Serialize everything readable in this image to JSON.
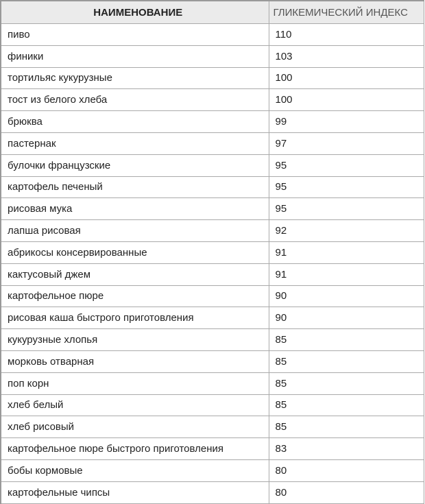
{
  "table": {
    "headers": [
      "НАИМЕНОВАНИЕ",
      "ГЛИКЕМИЧЕСКИЙ ИНДЕКС"
    ],
    "rows": [
      [
        "пиво",
        "110"
      ],
      [
        "финики",
        "103"
      ],
      [
        "тортильяс кукурузные",
        "100"
      ],
      [
        "тост из белого хлеба",
        "100"
      ],
      [
        "брюква",
        "99"
      ],
      [
        "пастернак",
        "97"
      ],
      [
        "булочки французские",
        "95"
      ],
      [
        "картофель печеный",
        "95"
      ],
      [
        "рисовая мука",
        "95"
      ],
      [
        "лапша рисовая",
        "92"
      ],
      [
        "абрикосы консервированные",
        "91"
      ],
      [
        "кактусовый джем",
        "91"
      ],
      [
        "картофельное пюре",
        "90"
      ],
      [
        "рисовая каша быстрого приготовления",
        "90"
      ],
      [
        "кукурузные хлопья",
        "85"
      ],
      [
        "морковь отварная",
        "85"
      ],
      [
        "поп корн",
        "85"
      ],
      [
        "хлеб белый",
        "85"
      ],
      [
        "хлеб рисовый",
        "85"
      ],
      [
        "картофельное пюре быстрого приготовления",
        "83"
      ],
      [
        "бобы кормовые",
        "80"
      ],
      [
        "картофельные чипсы",
        "80"
      ]
    ]
  }
}
